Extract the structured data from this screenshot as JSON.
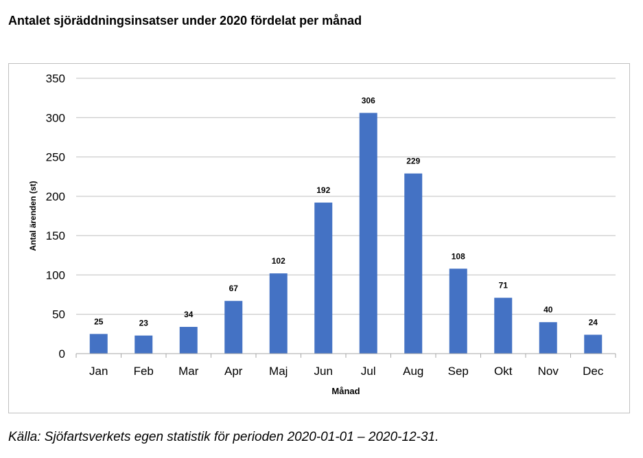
{
  "title": "Antalet sjöräddningsinsatser under 2020 fördelat per månad",
  "caption": "Källa: Sjöfartsverkets egen statistik för perioden 2020-01-01 – 2020-12-31.",
  "colors": {
    "bar": "#4472c4",
    "grid": "#bfbfbf",
    "frame": "#bfbfbf"
  },
  "chart_data": {
    "type": "bar",
    "title": "",
    "xlabel": "Månad",
    "ylabel": "Antal ärenden (st)",
    "categories": [
      "Jan",
      "Feb",
      "Mar",
      "Apr",
      "Maj",
      "Jun",
      "Jul",
      "Aug",
      "Sep",
      "Okt",
      "Nov",
      "Dec"
    ],
    "values": [
      25,
      23,
      34,
      67,
      102,
      192,
      306,
      229,
      108,
      71,
      40,
      24
    ],
    "ylim": [
      0,
      350
    ],
    "yticks": [
      0,
      50,
      100,
      150,
      200,
      250,
      300,
      350
    ],
    "grid": true,
    "data_labels": true,
    "legend": "none"
  }
}
